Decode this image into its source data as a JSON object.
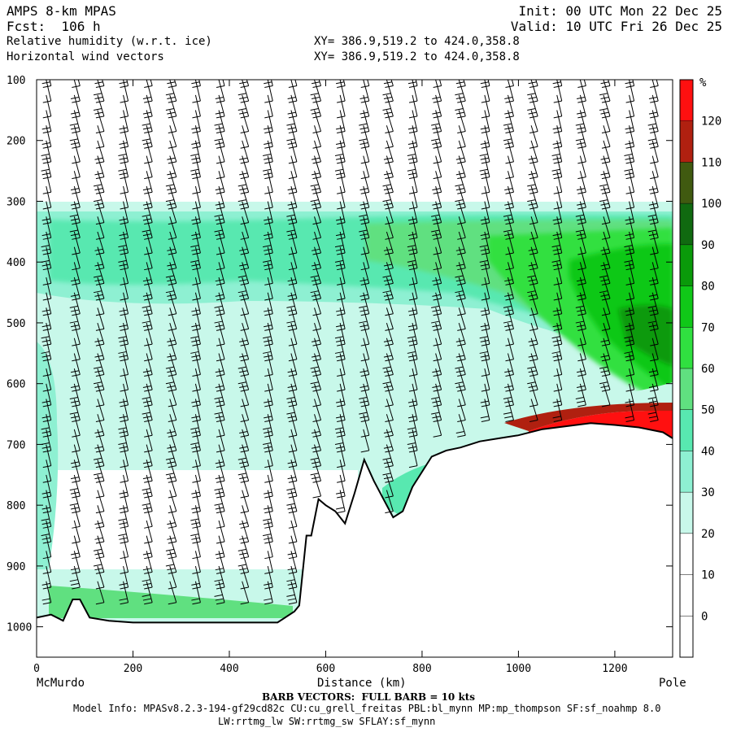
{
  "header": {
    "model": "AMPS 8-km MPAS",
    "fcst": "Fcst:  106 h",
    "field1": "Relative humidity (w.r.t. ice)",
    "field2": "Horizontal wind vectors",
    "init": "Init: 00 UTC Mon 22 Dec 25",
    "valid": "Valid: 10 UTC Fri 26 Dec 25",
    "xy1": "XY= 386.9,519.2 to 424.0,358.8",
    "xy2": "XY= 386.9,519.2 to 424.0,358.8"
  },
  "footer": {
    "barb": "BARB VECTORS:  FULL BARB = 10 kts",
    "model_info": "Model Info: MPASv8.2.3-194-gf29cd82c CU:cu_grell_freitas PBL:bl_mynn MP:mp_thompson SF:sf_noahmp 8.0",
    "model_info2": "LW:rrtmg_lw SW:rrtmg_sw SFLAY:sf_mynn"
  },
  "colors": {
    "c20": "#ffffff",
    "c30": "#c8f8ea",
    "c40": "#8ef0d2",
    "c50": "#58e8b0",
    "c60": "#60e080",
    "c70": "#30e040",
    "c80": "#10c818",
    "c90": "#0a9a0a",
    "c100": "#106a10",
    "c110": "#405a10",
    "c120": "#b02010",
    "c130": "#ff1010",
    "terrain": "#000000"
  },
  "chart_data": {
    "type": "heatmap",
    "xlabel": "Distance (km)",
    "x_tick_labels": [
      "0",
      "200",
      "400",
      "600",
      "800",
      "1000",
      "1200"
    ],
    "x_ticks": [
      0,
      200,
      400,
      600,
      800,
      1000,
      1200
    ],
    "xlim": [
      0,
      1320
    ],
    "x_end_labels": {
      "left": "McMurdo",
      "right": "Pole"
    },
    "y_tick_labels": [
      "100",
      "200",
      "300",
      "400",
      "500",
      "600",
      "700",
      "800",
      "900",
      "1000"
    ],
    "y_ticks": [
      100,
      200,
      300,
      400,
      500,
      600,
      700,
      800,
      900,
      1000
    ],
    "ylim": [
      100,
      1050
    ],
    "colorbar": {
      "unit": "%",
      "labels": [
        "0",
        "10",
        "20",
        "30",
        "40",
        "50",
        "60",
        "70",
        "80",
        "90",
        "100",
        "110",
        "120"
      ],
      "levels": [
        -10,
        0,
        10,
        20,
        30,
        40,
        50,
        60,
        70,
        80,
        90,
        100,
        110,
        120,
        130
      ]
    },
    "terrain_profile": {
      "x": [
        0,
        30,
        55,
        75,
        90,
        110,
        150,
        200,
        300,
        400,
        450,
        500,
        535,
        545,
        560,
        570,
        585,
        600,
        620,
        640,
        660,
        680,
        700,
        720,
        740,
        760,
        780,
        800,
        820,
        850,
        880,
        920,
        960,
        1000,
        1050,
        1100,
        1150,
        1200,
        1250,
        1300,
        1320
      ],
      "p": [
        985,
        980,
        990,
        955,
        955,
        985,
        990,
        993,
        993,
        993,
        993,
        993,
        975,
        965,
        850,
        850,
        790,
        800,
        810,
        830,
        780,
        725,
        760,
        790,
        820,
        810,
        770,
        745,
        720,
        710,
        705,
        695,
        690,
        685,
        675,
        670,
        665,
        668,
        672,
        680,
        690
      ]
    },
    "rh_field_summary": {
      "upper_dry_above_hpa": 300,
      "moist_layer_hpa": [
        300,
        450
      ],
      "moist_layer_rh_pct": [
        40,
        80
      ],
      "near_surface_red_band": {
        "x_km": [
          1000,
          1320
        ],
        "p_hpa": [
          650,
          690
        ],
        "rh_pct": [
          110,
          130
        ]
      }
    },
    "wind_barb_columns_km": [
      30,
      90,
      140,
      190,
      240,
      290,
      340,
      390,
      440,
      490,
      540,
      590,
      640,
      690,
      740,
      790,
      840,
      890,
      940,
      990,
      1040,
      1090,
      1140,
      1190,
      1240,
      1290
    ]
  }
}
